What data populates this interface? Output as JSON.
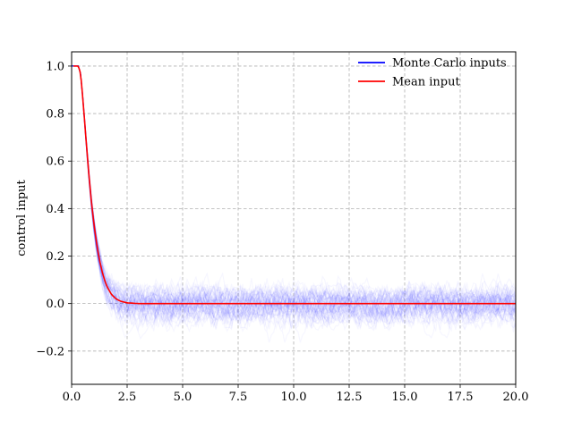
{
  "chart_data": {
    "type": "line",
    "title": "",
    "xlabel": "",
    "ylabel": "control input",
    "xlim": [
      0,
      20
    ],
    "ylim": [
      -0.34,
      1.06
    ],
    "x_ticks": [
      0,
      2.5,
      5,
      7.5,
      10,
      12.5,
      15,
      17.5,
      20
    ],
    "x_tick_labels": [
      "0.0",
      "2.5",
      "5.0",
      "7.5",
      "10.0",
      "12.5",
      "15.0",
      "17.5",
      "20.0"
    ],
    "y_ticks": [
      -0.2,
      0,
      0.2,
      0.4,
      0.6,
      0.8,
      1.0
    ],
    "y_tick_labels": [
      "−0.2",
      "0.0",
      "0.2",
      "0.4",
      "0.6",
      "0.8",
      "1.0"
    ],
    "grid": true,
    "legend_position": "top-right",
    "series": [
      {
        "name": "Monte Carlo inputs",
        "color": "#0000ff",
        "description_type": "many noisy trajectories around the mean",
        "noise_std": 0.07
      },
      {
        "name": "Mean input",
        "color": "#ff0000",
        "x": [
          0,
          0.3,
          0.4,
          0.5,
          0.6,
          0.7,
          0.8,
          0.9,
          1.0,
          1.1,
          1.2,
          1.3,
          1.4,
          1.5,
          1.6,
          1.8,
          2.0,
          2.2,
          2.5,
          3.0,
          4.0,
          5.0,
          7.5,
          10.0,
          12.5,
          15.0,
          17.5,
          20.0
        ],
        "y": [
          1.0,
          1.0,
          0.97,
          0.87,
          0.75,
          0.63,
          0.52,
          0.42,
          0.34,
          0.27,
          0.21,
          0.165,
          0.125,
          0.095,
          0.07,
          0.038,
          0.02,
          0.01,
          0.003,
          0.0,
          0.0,
          0.0,
          0.0,
          0.0,
          0.0,
          0.0,
          0.0,
          0.0
        ]
      }
    ]
  }
}
